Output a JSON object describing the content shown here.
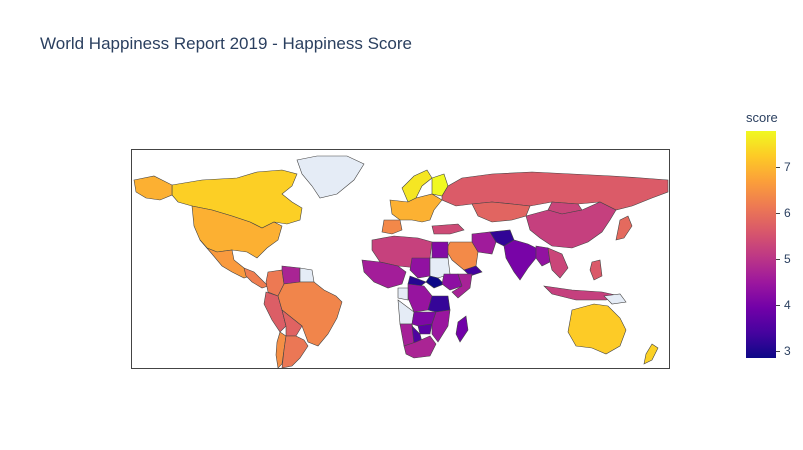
{
  "chart_data": {
    "type": "choropleth",
    "title": "World Happiness Report 2019 - Happiness Score",
    "colorbar": {
      "title": "score",
      "range": [
        2.85,
        7.77
      ],
      "ticks": [
        "3",
        "4",
        "5",
        "6",
        "7"
      ],
      "tick_values": [
        3,
        4,
        5,
        6,
        7
      ],
      "colorscale": [
        "#0d0887",
        "#46039f",
        "#7201a8",
        "#9c179e",
        "#bd3786",
        "#d8576b",
        "#ed7953",
        "#fb9f3a",
        "#fdca26",
        "#f0f921"
      ]
    },
    "missing_color": "#e5ecf6",
    "border_color": "#444444",
    "regions": [
      {
        "name": "Canada",
        "score": 7.28
      },
      {
        "name": "Alaska",
        "score": 6.89
      },
      {
        "name": "United States",
        "score": 6.89
      },
      {
        "name": "Mexico",
        "score": 6.6
      },
      {
        "name": "Central America",
        "score": 6.2
      },
      {
        "name": "Greenland",
        "score": null
      },
      {
        "name": "Colombia",
        "score": 6.13
      },
      {
        "name": "Venezuela",
        "score": 4.71
      },
      {
        "name": "Guyana",
        "score": null
      },
      {
        "name": "Peru",
        "score": 5.7
      },
      {
        "name": "Brazil",
        "score": 6.3
      },
      {
        "name": "Bolivia",
        "score": 5.78
      },
      {
        "name": "Chile",
        "score": 6.44
      },
      {
        "name": "Argentina",
        "score": 6.09
      },
      {
        "name": "Norway",
        "score": 7.55
      },
      {
        "name": "Finland",
        "score": 7.77
      },
      {
        "name": "Western Europe",
        "score": 6.9
      },
      {
        "name": "Spain",
        "score": 6.35
      },
      {
        "name": "Russia",
        "score": 5.65
      },
      {
        "name": "Kazakhstan",
        "score": 5.81
      },
      {
        "name": "Mongolia",
        "score": 5.28
      },
      {
        "name": "China",
        "score": 5.19
      },
      {
        "name": "Japan",
        "score": 5.89
      },
      {
        "name": "Turkey",
        "score": 5.37
      },
      {
        "name": "Iran",
        "score": 4.55
      },
      {
        "name": "Afghanistan",
        "score": 3.2
      },
      {
        "name": "Saudi Arabia",
        "score": 6.38
      },
      {
        "name": "Yemen",
        "score": 3.38
      },
      {
        "name": "India",
        "score": 4.02
      },
      {
        "name": "Myanmar",
        "score": 4.36
      },
      {
        "name": "Southeast Asia",
        "score": 5.3
      },
      {
        "name": "Indonesia",
        "score": 5.19
      },
      {
        "name": "Philippines",
        "score": 5.63
      },
      {
        "name": "North Africa",
        "score": 5.21
      },
      {
        "name": "Egypt",
        "score": 4.17
      },
      {
        "name": "West Africa",
        "score": 4.6
      },
      {
        "name": "Chad",
        "score": 4.35
      },
      {
        "name": "Sudan",
        "score": null
      },
      {
        "name": "South Sudan",
        "score": 2.85
      },
      {
        "name": "Central African Republic",
        "score": 3.08
      },
      {
        "name": "Ethiopia",
        "score": 4.29
      },
      {
        "name": "Somalia",
        "score": 4.67
      },
      {
        "name": "Congo (Kinshasa)",
        "score": 4.42
      },
      {
        "name": "Tanzania",
        "score": 3.23
      },
      {
        "name": "Gabon",
        "score": null
      },
      {
        "name": "Angola",
        "score": null
      },
      {
        "name": "Zambia",
        "score": 4.11
      },
      {
        "name": "Zimbabwe",
        "score": 3.66
      },
      {
        "name": "Mozambique",
        "score": 4.47
      },
      {
        "name": "Namibia",
        "score": 4.64
      },
      {
        "name": "Botswana",
        "score": 3.49
      },
      {
        "name": "South Africa",
        "score": 4.72
      },
      {
        "name": "Madagascar",
        "score": 3.93
      },
      {
        "name": "Australia",
        "score": 7.23
      },
      {
        "name": "New Zealand",
        "score": 7.31
      },
      {
        "name": "Papua New Guinea",
        "score": null
      }
    ]
  }
}
